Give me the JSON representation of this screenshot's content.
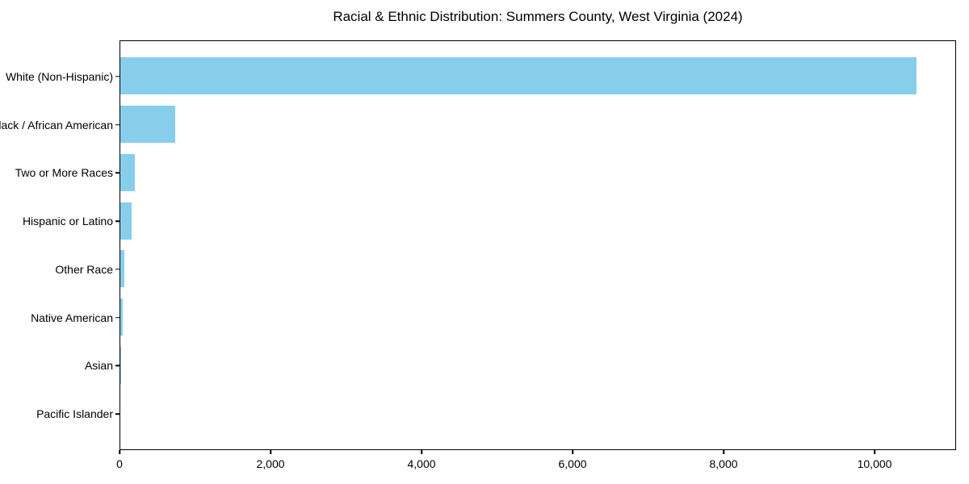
{
  "chart_data": {
    "type": "bar",
    "orientation": "horizontal",
    "title": "Racial & Ethnic Distribution: Summers County, West Virginia (2024)",
    "categories": [
      "White (Non-Hispanic)",
      "Black / African American",
      "Two or More Races",
      "Hispanic or Latino",
      "Other Race",
      "Native American",
      "Asian",
      "Pacific Islander"
    ],
    "values": [
      10550,
      730,
      190,
      150,
      50,
      30,
      10,
      0
    ],
    "bar_color": "#87CEEB",
    "xlabel": "",
    "ylabel": "",
    "xlim": [
      0,
      11080
    ],
    "xticks": [
      0,
      2000,
      4000,
      6000,
      8000,
      10000
    ],
    "xtick_labels": [
      "0",
      "2,000",
      "4,000",
      "6,000",
      "8,000",
      "10,000"
    ],
    "grid": false,
    "legend_position": "none",
    "background_color": "#ffffff",
    "text_color": "#000000"
  }
}
